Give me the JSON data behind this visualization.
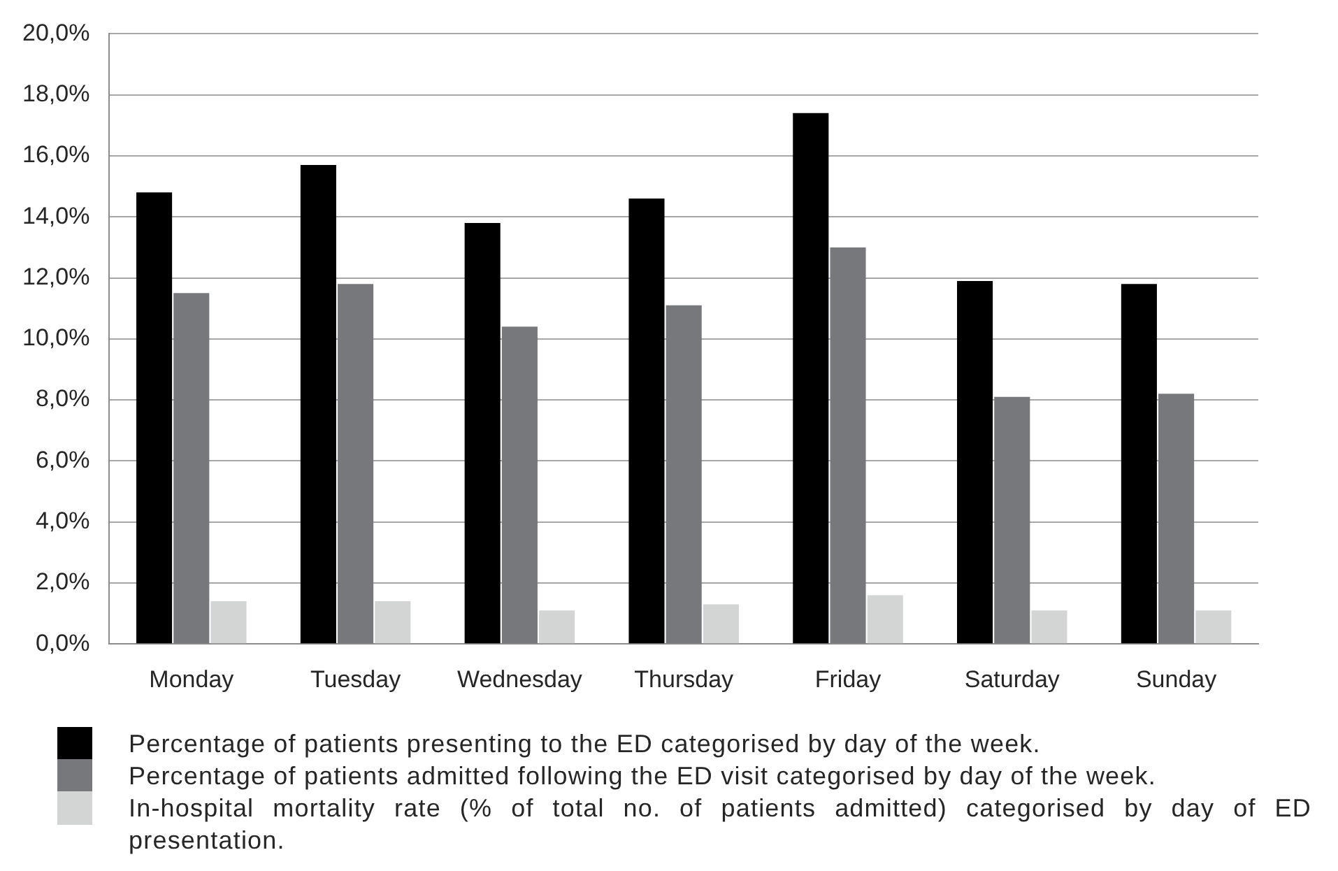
{
  "chart_data": {
    "type": "bar",
    "categories": [
      "Monday",
      "Tuesday",
      "Wednesday",
      "Thursday",
      "Friday",
      "Saturday",
      "Sunday"
    ],
    "series": [
      {
        "name": "Percentage of patients presenting to the ED categorised by day of the week.",
        "color": "#000000",
        "values": [
          14.8,
          15.7,
          13.8,
          14.6,
          17.4,
          11.9,
          11.8
        ]
      },
      {
        "name": "Percentage of patients admitted following the ED visit categorised by day of the week.",
        "color": "#76787b",
        "values": [
          11.5,
          11.8,
          10.4,
          11.1,
          13.0,
          8.1,
          8.2
        ]
      },
      {
        "name": "In-hospital mortality rate (% of total no. of patients admitted) categorised by day of ED presentation.",
        "color": "#d3d5d4",
        "values": [
          1.4,
          1.4,
          1.1,
          1.3,
          1.6,
          1.1,
          1.1
        ]
      }
    ],
    "ylim": [
      0,
      20
    ],
    "yticks": [
      {
        "value": 0,
        "label": "0,0%"
      },
      {
        "value": 2,
        "label": "2,0%"
      },
      {
        "value": 4,
        "label": "4,0%"
      },
      {
        "value": 6,
        "label": "6,0%"
      },
      {
        "value": 8,
        "label": "8,0%"
      },
      {
        "value": 10,
        "label": "10,0%"
      },
      {
        "value": 12,
        "label": "12,0%"
      },
      {
        "value": 14,
        "label": "14,0%"
      },
      {
        "value": 16,
        "label": "16,0%"
      },
      {
        "value": 18,
        "label": "18,0%"
      },
      {
        "value": 20,
        "label": "20,0%"
      }
    ],
    "grid": "y",
    "legend": "bottom"
  }
}
